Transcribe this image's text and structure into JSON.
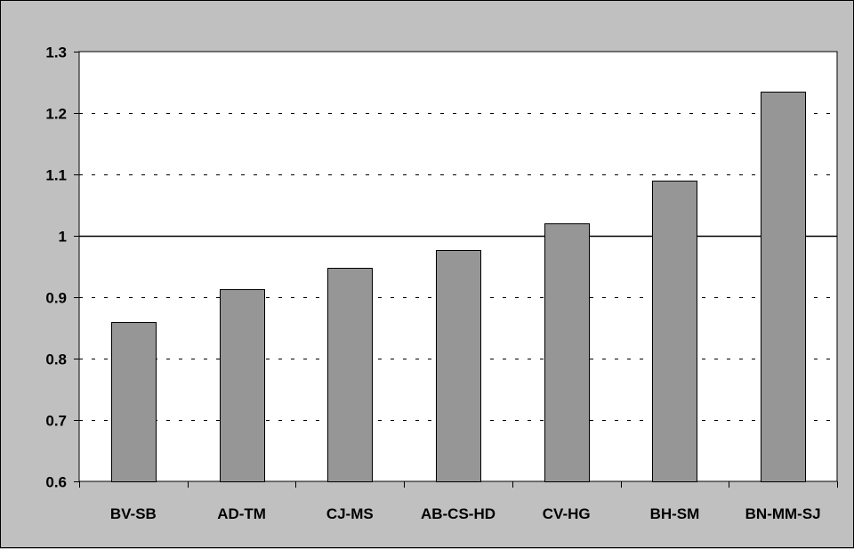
{
  "chart_data": {
    "type": "bar",
    "categories": [
      "BV-SB",
      "AD-TM",
      "CJ-MS",
      "AB-CS-HD",
      "CV-HG",
      "BH-SM",
      "BN-MM-SJ"
    ],
    "values": [
      0.859,
      0.913,
      0.948,
      0.977,
      1.021,
      1.09,
      1.235
    ],
    "ylim": [
      0.6,
      1.3
    ],
    "yticks": [
      "0.6",
      "0.7",
      "0.8",
      "0.9",
      "1",
      "1.1",
      "1.2",
      "1.3"
    ],
    "reference_line": 1,
    "grid": "horizontal dashed",
    "legend": "none",
    "colors": {
      "background": "#c0c0c0",
      "plot_area": "#ffffff",
      "bar_fill": "#969696",
      "bar_stroke": "#000000"
    }
  }
}
